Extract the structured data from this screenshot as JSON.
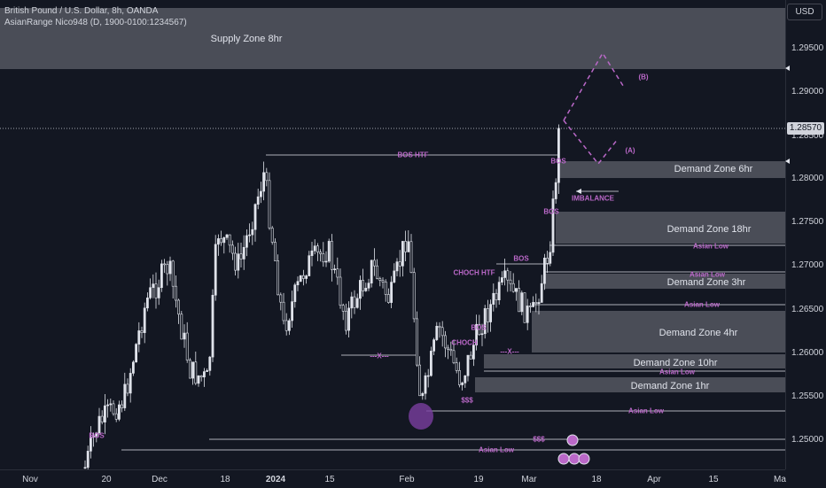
{
  "header": {
    "title": "British Pound / U.S. Dollar, 8h, OANDA",
    "indicator": "AsianRange Nico948 (D, 1900-0100:1234567)"
  },
  "currency": "USD",
  "current_price": "1.28570",
  "colors": {
    "background": "#131722",
    "zone_fill": "#4a4d57",
    "candle": "#e0e3eb",
    "annotation": "#ba68c8"
  },
  "price_axis": {
    "ticks": [
      "1.29500",
      "1.29000",
      "1.28500",
      "1.28000",
      "1.27500",
      "1.27000",
      "1.26500",
      "1.26000",
      "1.25500",
      "1.25000",
      "1.24500"
    ]
  },
  "time_axis": {
    "ticks": [
      {
        "label": "Nov",
        "bold": false
      },
      {
        "label": "20",
        "bold": false
      },
      {
        "label": "Dec",
        "bold": false
      },
      {
        "label": "18",
        "bold": false
      },
      {
        "label": "2024",
        "bold": true
      },
      {
        "label": "15",
        "bold": false
      },
      {
        "label": "Feb",
        "bold": false
      },
      {
        "label": "19",
        "bold": false
      },
      {
        "label": "Mar",
        "bold": false
      },
      {
        "label": "18",
        "bold": false
      },
      {
        "label": "Apr",
        "bold": false
      },
      {
        "label": "15",
        "bold": false
      },
      {
        "label": "Ma",
        "bold": false
      }
    ]
  },
  "zones": [
    {
      "label": "Supply Zone 8hr"
    },
    {
      "label": "Demand Zone 6hr"
    },
    {
      "label": "Demand Zone 18hr"
    },
    {
      "label": "Demand Zone 3hr"
    },
    {
      "label": "Demand Zone 4hr"
    },
    {
      "label": "Demand Zone 10hr"
    },
    {
      "label": "Demand Zone 1hr"
    }
  ],
  "annotations": {
    "bos_htf": "BOS HTF",
    "bos": "BOS",
    "choch_htf": "CHOCH HTF",
    "choch": "CHOCH",
    "imbalance": "IMBALANCE",
    "asian_low": "Asian Low",
    "dollars": "$$$",
    "x_marker": "---X---",
    "wave_a": "(A)",
    "wave_b": "(B)"
  },
  "chart_data": {
    "type": "candlestick",
    "symbol": "GBPUSD",
    "timeframe": "8h",
    "y_range": [
      1.245,
      1.299
    ],
    "projection": "dashed path up to about 1.2945 then down toward (B) near 1.2905; alternative dip (A) near 1.2810"
  }
}
